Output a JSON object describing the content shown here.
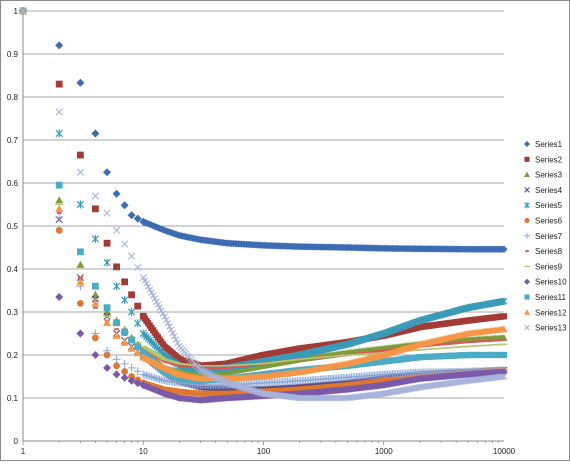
{
  "chart_data": {
    "type": "scatter",
    "title": "",
    "xlabel": "",
    "ylabel": "",
    "x_scale": "log",
    "xlim": [
      1,
      10000
    ],
    "ylim": [
      0,
      1
    ],
    "grid": "horizontal",
    "legend_position": "right",
    "x_tick_labels": [
      "1",
      "10",
      "100",
      "1000",
      "10000"
    ],
    "y_tick_labels": [
      "0",
      "0.1",
      "0.2",
      "0.3",
      "0.4",
      "0.5",
      "0.6",
      "0.7",
      "0.8",
      "0.9",
      "1"
    ],
    "x": [
      1,
      2,
      3,
      4,
      5,
      6,
      8,
      10,
      15,
      20,
      30,
      50,
      100,
      200,
      500,
      1000,
      2000,
      5000,
      10000
    ],
    "series": [
      {
        "name": "Series1",
        "color": "#3d6cb3",
        "marker": "diamond",
        "values": [
          1,
          0.92,
          0.833,
          0.715,
          0.625,
          0.575,
          0.525,
          0.51,
          0.49,
          0.478,
          0.468,
          0.46,
          0.455,
          0.452,
          0.45,
          0.448,
          0.447,
          0.446,
          0.446
        ]
      },
      {
        "name": "Series2",
        "color": "#a33a36",
        "marker": "square",
        "values": [
          1,
          0.83,
          0.665,
          0.54,
          0.46,
          0.405,
          0.34,
          0.29,
          0.22,
          0.19,
          0.175,
          0.18,
          0.2,
          0.215,
          0.23,
          0.245,
          0.265,
          0.28,
          0.29
        ]
      },
      {
        "name": "Series3",
        "color": "#7e9c3c",
        "marker": "triangle",
        "values": [
          1,
          0.56,
          0.41,
          0.34,
          0.3,
          0.28,
          0.24,
          0.21,
          0.17,
          0.16,
          0.155,
          0.16,
          0.175,
          0.19,
          0.205,
          0.215,
          0.225,
          0.235,
          0.24
        ]
      },
      {
        "name": "Series4",
        "color": "#5e4a7f",
        "marker": "x",
        "values": [
          1,
          0.515,
          0.38,
          0.33,
          0.29,
          0.25,
          0.22,
          0.2,
          0.16,
          0.14,
          0.125,
          0.12,
          0.12,
          0.125,
          0.135,
          0.145,
          0.155,
          0.16,
          0.165
        ]
      },
      {
        "name": "Series5",
        "color": "#3a9bb8",
        "marker": "star",
        "values": [
          1,
          0.715,
          0.55,
          0.47,
          0.415,
          0.36,
          0.3,
          0.25,
          0.2,
          0.175,
          0.165,
          0.17,
          0.185,
          0.2,
          0.225,
          0.25,
          0.28,
          0.31,
          0.325
        ]
      },
      {
        "name": "Series6",
        "color": "#e0772e",
        "marker": "circle",
        "values": [
          1,
          0.49,
          0.32,
          0.24,
          0.2,
          0.175,
          0.15,
          0.135,
          0.12,
          0.115,
          0.11,
          0.11,
          0.115,
          0.12,
          0.13,
          0.14,
          0.15,
          0.16,
          0.165
        ]
      },
      {
        "name": "Series7",
        "color": "#8aa6d6",
        "marker": "plus",
        "values": [
          1,
          0.52,
          0.36,
          0.25,
          0.21,
          0.19,
          0.17,
          0.155,
          0.14,
          0.135,
          0.13,
          0.13,
          0.135,
          0.14,
          0.148,
          0.155,
          0.16,
          0.162,
          0.165
        ]
      },
      {
        "name": "Series8",
        "color": "#d9585a",
        "marker": "dash",
        "values": [
          1,
          0.53,
          0.38,
          0.31,
          0.28,
          0.26,
          0.235,
          0.215,
          0.185,
          0.175,
          0.17,
          0.17,
          0.18,
          0.19,
          0.2,
          0.21,
          0.22,
          0.23,
          0.235
        ]
      },
      {
        "name": "Series9",
        "color": "#b0c870",
        "marker": "line",
        "values": [
          1,
          0.55,
          0.4,
          0.33,
          0.29,
          0.27,
          0.24,
          0.22,
          0.19,
          0.18,
          0.175,
          0.175,
          0.18,
          0.19,
          0.2,
          0.205,
          0.212,
          0.22,
          0.225
        ]
      },
      {
        "name": "Series10",
        "color": "#7a5aa8",
        "marker": "diamond",
        "values": [
          1,
          0.335,
          0.25,
          0.2,
          0.17,
          0.155,
          0.14,
          0.13,
          0.11,
          0.1,
          0.095,
          0.1,
          0.105,
          0.11,
          0.12,
          0.13,
          0.145,
          0.155,
          0.16
        ]
      },
      {
        "name": "Series11",
        "color": "#4bacc6",
        "marker": "square",
        "values": [
          1,
          0.595,
          0.44,
          0.36,
          0.31,
          0.275,
          0.235,
          0.205,
          0.16,
          0.145,
          0.14,
          0.145,
          0.155,
          0.165,
          0.175,
          0.185,
          0.195,
          0.2,
          0.2
        ]
      },
      {
        "name": "Series12",
        "color": "#f79646",
        "marker": "triangle",
        "values": [
          1,
          0.54,
          0.37,
          0.32,
          0.275,
          0.245,
          0.215,
          0.195,
          0.17,
          0.155,
          0.145,
          0.145,
          0.15,
          0.16,
          0.18,
          0.2,
          0.225,
          0.25,
          0.26
        ]
      },
      {
        "name": "Series13",
        "color": "#a7b3da",
        "marker": "x",
        "values": [
          1,
          0.765,
          0.625,
          0.57,
          0.53,
          0.49,
          0.43,
          0.38,
          0.29,
          0.22,
          0.165,
          0.135,
          0.11,
          0.1,
          0.1,
          0.11,
          0.125,
          0.14,
          0.15
        ]
      }
    ]
  }
}
